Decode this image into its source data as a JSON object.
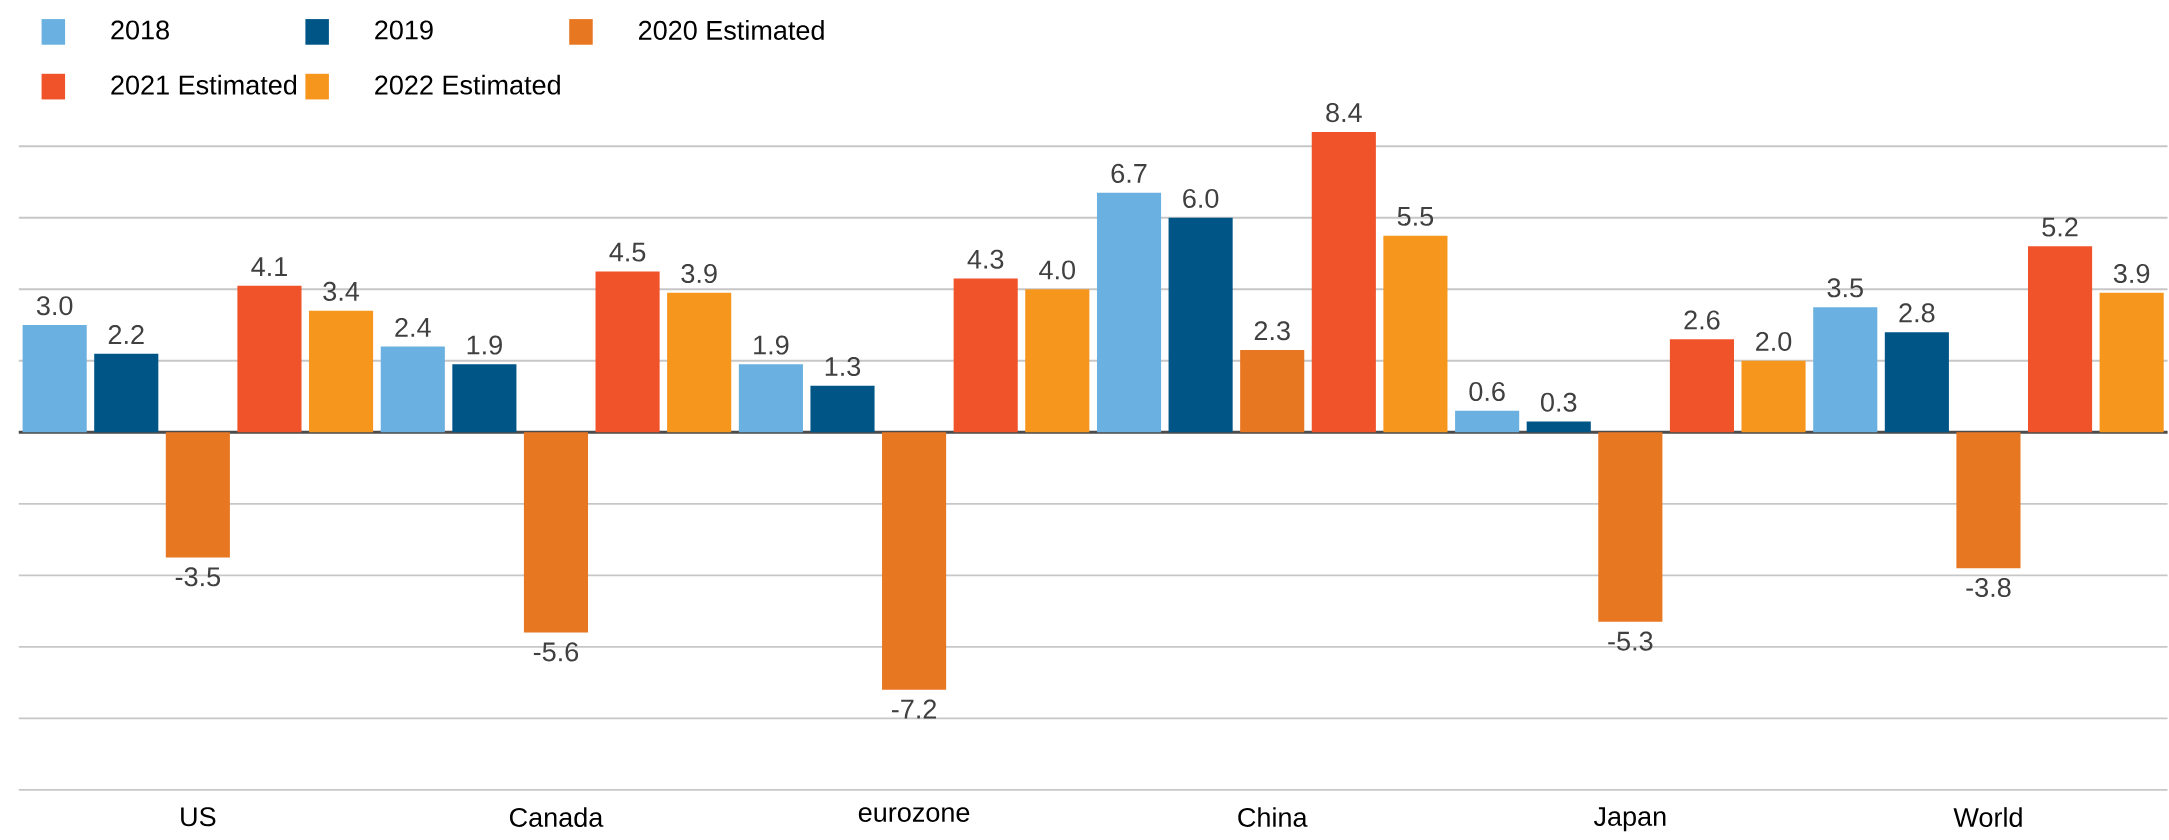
{
  "chart_data": {
    "type": "bar",
    "categories": [
      "US",
      "Canada",
      "eurozone",
      "China",
      "Japan",
      "World"
    ],
    "series": [
      {
        "name": "2018",
        "color": "#6ab0e0",
        "values": [
          3.0,
          2.4,
          1.9,
          6.7,
          0.6,
          3.5
        ],
        "value_labels": [
          "3.0",
          "2.4",
          "1.9",
          "6.7",
          "0.6",
          "3.5"
        ]
      },
      {
        "name": "2019",
        "color": "#005587",
        "values": [
          2.2,
          1.9,
          1.3,
          6.0,
          0.3,
          2.8
        ],
        "value_labels": [
          "2.2",
          "1.9",
          "1.3",
          "6.0",
          "0.3",
          "2.8"
        ]
      },
      {
        "name": "2020 Estimated",
        "color": "#e87722",
        "values": [
          -3.5,
          -5.6,
          -7.2,
          2.3,
          -5.3,
          -3.8
        ],
        "value_labels": [
          "-3.5",
          "-5.6",
          "-7.2",
          "2.3",
          "-5.3",
          "-3.8"
        ]
      },
      {
        "name": "2021 Estimated",
        "color": "#f0532a",
        "values": [
          4.1,
          4.5,
          4.3,
          8.4,
          2.6,
          5.2
        ],
        "value_labels": [
          "4.1",
          "4.5",
          "4.3",
          "8.4",
          "2.6",
          "5.2"
        ]
      },
      {
        "name": "2022 Estimated",
        "color": "#f7961d",
        "values": [
          3.4,
          3.9,
          4.0,
          5.5,
          2.0,
          3.9
        ],
        "value_labels": [
          "3.4",
          "3.9",
          "4.0",
          "5.5",
          "2.0",
          "3.9"
        ]
      }
    ],
    "yticks": [
      {
        "value": -10,
        "label": null
      },
      {
        "value": -8,
        "label": null
      },
      {
        "value": -6,
        "label": null
      },
      {
        "value": -4,
        "label": null
      },
      {
        "value": -2,
        "label": null
      },
      {
        "value": 0,
        "label": null
      },
      {
        "value": 2,
        "label": null
      },
      {
        "value": 4,
        "label": null
      },
      {
        "value": 6,
        "label": null
      },
      {
        "value": 8,
        "label": null
      }
    ],
    "tick_labels": "x",
    "grid": "y",
    "legend": "top left"
  }
}
